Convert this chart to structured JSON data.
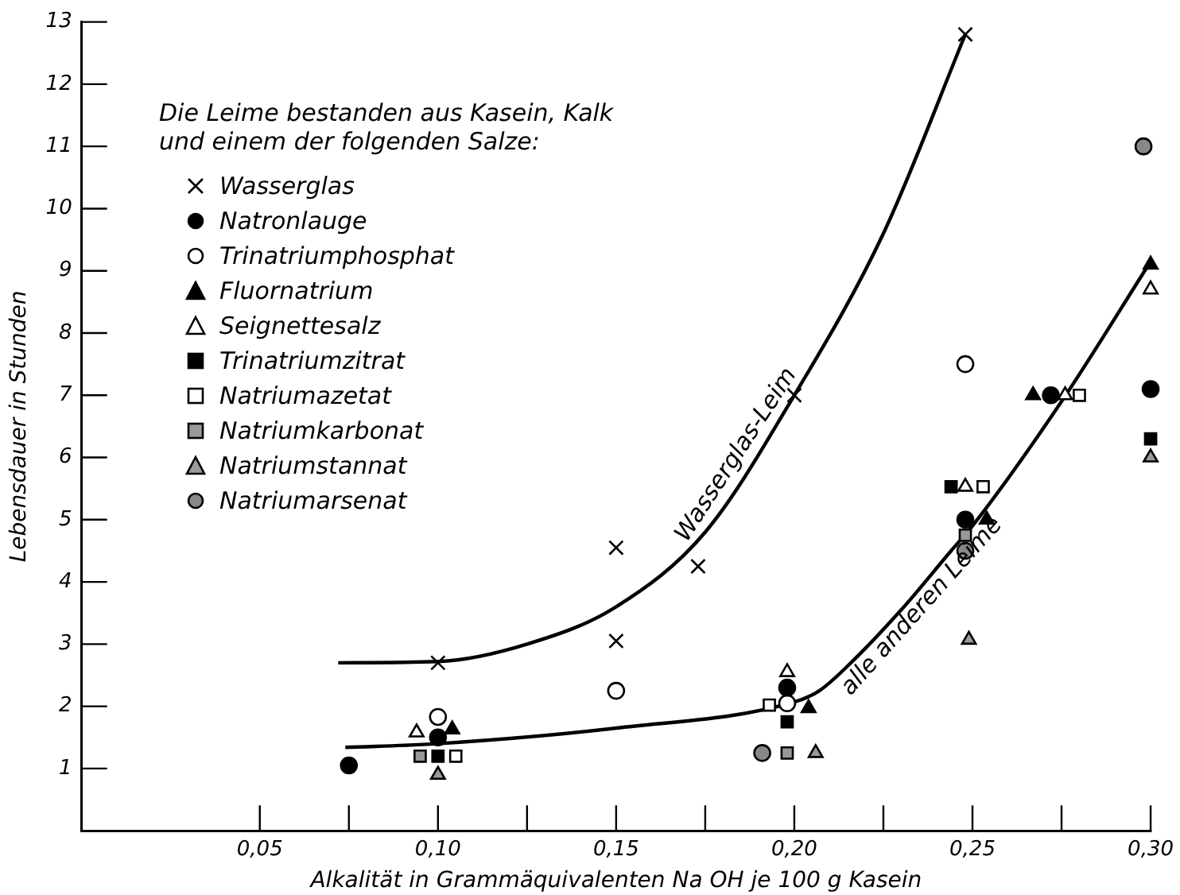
{
  "chart_data": {
    "type": "scatter",
    "xlabel": "Alkalität in Grammäquivalenten Na OH je 100 g Kasein",
    "ylabel": "Lebensdauer in Stunden",
    "legend_title": "Die Leime bestanden aus Kasein, Kalk und einem der folgenden Salze:",
    "legend": "top left",
    "grid": false,
    "xlim": [
      0,
      0.3
    ],
    "ylim": [
      0,
      13
    ],
    "xticks": [
      {
        "value": 0.05,
        "label": "0,05"
      },
      {
        "value": 0.075,
        "label": null
      },
      {
        "value": 0.1,
        "label": "0,10"
      },
      {
        "value": 0.125,
        "label": null
      },
      {
        "value": 0.15,
        "label": "0,15"
      },
      {
        "value": 0.175,
        "label": null
      },
      {
        "value": 0.2,
        "label": "0,20"
      },
      {
        "value": 0.225,
        "label": null
      },
      {
        "value": 0.25,
        "label": "0,25"
      },
      {
        "value": 0.275,
        "label": null
      },
      {
        "value": 0.3,
        "label": "0,30"
      }
    ],
    "yticks": [
      1,
      2,
      3,
      4,
      5,
      6,
      7,
      8,
      9,
      10,
      11,
      12,
      13
    ],
    "series": [
      {
        "name": "Wasserglas",
        "color": "#000000",
        "marker": "cross",
        "x": [
          0.1,
          0.15,
          0.15,
          0.173,
          0.2,
          0.248
        ],
        "values": [
          2.7,
          4.55,
          3.05,
          4.25,
          7.0,
          12.8
        ]
      },
      {
        "name": "Natronlauge",
        "color": "#000000",
        "marker": "circle",
        "x": [
          0.075,
          0.1,
          0.198,
          0.248,
          0.272,
          0.3
        ],
        "values": [
          1.05,
          1.5,
          2.3,
          5.0,
          7.0,
          7.1
        ]
      },
      {
        "name": "Trinatriumphosphat",
        "color": "#ffffff",
        "marker": "circle",
        "x": [
          0.1,
          0.15,
          0.198,
          0.248
        ],
        "values": [
          1.83,
          2.25,
          2.05,
          7.5
        ]
      },
      {
        "name": "Fluornatrium",
        "color": "#000000",
        "marker": "triangle",
        "x": [
          0.104,
          0.204,
          0.254,
          0.267,
          0.3
        ],
        "values": [
          1.63,
          1.97,
          5.0,
          7.0,
          9.1
        ]
      },
      {
        "name": "Seignettesalz",
        "color": "#ffffff",
        "marker": "triangle",
        "x": [
          0.094,
          0.198,
          0.248,
          0.276,
          0.3
        ],
        "values": [
          1.58,
          2.55,
          5.53,
          7.0,
          8.7
        ]
      },
      {
        "name": "Trinatriumzitrat",
        "color": "#000000",
        "marker": "square",
        "x": [
          0.1,
          0.198,
          0.244,
          0.3
        ],
        "values": [
          1.2,
          1.75,
          5.53,
          6.3
        ]
      },
      {
        "name": "Natriumazetat",
        "color": "#ffffff",
        "marker": "square",
        "x": [
          0.105,
          0.193,
          0.253,
          0.28
        ],
        "values": [
          1.2,
          2.02,
          5.53,
          7.0
        ]
      },
      {
        "name": "Natriumkarbonat",
        "color": "#999999",
        "marker": "square",
        "x": [
          0.095,
          0.198,
          0.248
        ],
        "values": [
          1.2,
          1.25,
          4.75
        ]
      },
      {
        "name": "Natriumstannat",
        "color": "#999999",
        "marker": "triangle",
        "x": [
          0.1,
          0.206,
          0.249,
          0.3
        ],
        "values": [
          0.9,
          1.25,
          3.07,
          6.0
        ]
      },
      {
        "name": "Natriumarsenat",
        "color": "#888888",
        "marker": "circle",
        "x": [
          0.191,
          0.248,
          0.298
        ],
        "values": [
          1.25,
          4.5,
          11.0
        ]
      },
      {
        "name": "Wasserglas-Leim",
        "type": "line",
        "color": "#000000",
        "marker": "none",
        "x": [
          0.072,
          0.1,
          0.125,
          0.15,
          0.175,
          0.2,
          0.225,
          0.248
        ],
        "values": [
          2.7,
          2.72,
          3.0,
          3.6,
          4.8,
          7.0,
          9.6,
          12.8
        ]
      },
      {
        "name": "alle anderen Leime",
        "type": "line",
        "color": "#000000",
        "marker": "none",
        "x": [
          0.074,
          0.1,
          0.15,
          0.2,
          0.207,
          0.215,
          0.23,
          0.244,
          0.25,
          0.275,
          0.3
        ],
        "values": [
          1.34,
          1.4,
          1.65,
          2.07,
          2.25,
          2.65,
          3.55,
          4.5,
          4.9,
          6.9,
          9.15
        ]
      }
    ]
  }
}
